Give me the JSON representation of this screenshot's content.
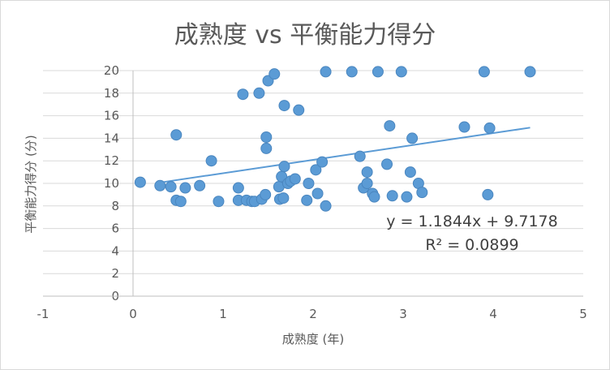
{
  "chart_data": {
    "type": "scatter",
    "title": "成熟度 vs 平衡能力得分",
    "xlabel": "成熟度 (年)",
    "ylabel": "平衡能力得分 (分)",
    "xlim": [
      -1,
      5
    ],
    "ylim": [
      0,
      20
    ],
    "x_ticks": [
      "-1",
      "0",
      "1",
      "2",
      "3",
      "4",
      "5"
    ],
    "y_ticks": [
      "0",
      "2",
      "4",
      "6",
      "8",
      "10",
      "12",
      "14",
      "16",
      "18",
      "20"
    ],
    "grid": "horizontal",
    "legend": "none",
    "colors": {
      "marker": "#5b9bd5",
      "marker_edge": "#4a86bf",
      "trendline": "#5b9bd5",
      "grid": "#d9d9d9",
      "text": "#595959"
    },
    "points": [
      [
        0.08,
        10.1
      ],
      [
        0.3,
        9.8
      ],
      [
        0.42,
        9.7
      ],
      [
        0.48,
        14.3
      ],
      [
        0.48,
        8.5
      ],
      [
        0.53,
        8.4
      ],
      [
        0.58,
        9.6
      ],
      [
        0.74,
        9.8
      ],
      [
        0.87,
        12.0
      ],
      [
        0.95,
        8.4
      ],
      [
        1.17,
        9.6
      ],
      [
        1.17,
        8.5
      ],
      [
        1.22,
        17.9
      ],
      [
        1.26,
        8.5
      ],
      [
        1.32,
        8.4
      ],
      [
        1.35,
        8.4
      ],
      [
        1.4,
        18.0
      ],
      [
        1.43,
        8.6
      ],
      [
        1.47,
        9.0
      ],
      [
        1.48,
        14.1
      ],
      [
        1.48,
        13.1
      ],
      [
        1.5,
        19.1
      ],
      [
        1.57,
        19.7
      ],
      [
        1.62,
        9.7
      ],
      [
        1.63,
        8.6
      ],
      [
        1.65,
        10.6
      ],
      [
        1.67,
        8.7
      ],
      [
        1.68,
        11.5
      ],
      [
        1.68,
        16.9
      ],
      [
        1.72,
        10.0
      ],
      [
        1.75,
        10.2
      ],
      [
        1.8,
        10.4
      ],
      [
        1.84,
        16.5
      ],
      [
        1.93,
        8.5
      ],
      [
        1.95,
        10.0
      ],
      [
        2.03,
        11.2
      ],
      [
        2.05,
        9.1
      ],
      [
        2.1,
        11.9
      ],
      [
        2.14,
        8.0
      ],
      [
        2.14,
        19.9
      ],
      [
        2.43,
        19.9
      ],
      [
        2.52,
        12.4
      ],
      [
        2.56,
        9.6
      ],
      [
        2.6,
        11.0
      ],
      [
        2.6,
        10.0
      ],
      [
        2.66,
        9.1
      ],
      [
        2.68,
        8.8
      ],
      [
        2.72,
        19.9
      ],
      [
        2.82,
        11.7
      ],
      [
        2.85,
        15.1
      ],
      [
        2.88,
        8.9
      ],
      [
        2.98,
        19.9
      ],
      [
        3.04,
        8.8
      ],
      [
        3.08,
        11.0
      ],
      [
        3.1,
        14.0
      ],
      [
        3.17,
        10.0
      ],
      [
        3.21,
        9.2
      ],
      [
        3.68,
        15.0
      ],
      [
        3.9,
        19.9
      ],
      [
        3.94,
        9.0
      ],
      [
        3.96,
        14.9
      ],
      [
        4.41,
        19.9
      ]
    ],
    "trendline": {
      "type": "linear",
      "slope": 1.1844,
      "intercept": 9.7178,
      "x_range": [
        0.25,
        4.41
      ],
      "equation_label": "y = 1.1844x + 9.7178",
      "r2_label": "R² = 0.0899"
    }
  }
}
